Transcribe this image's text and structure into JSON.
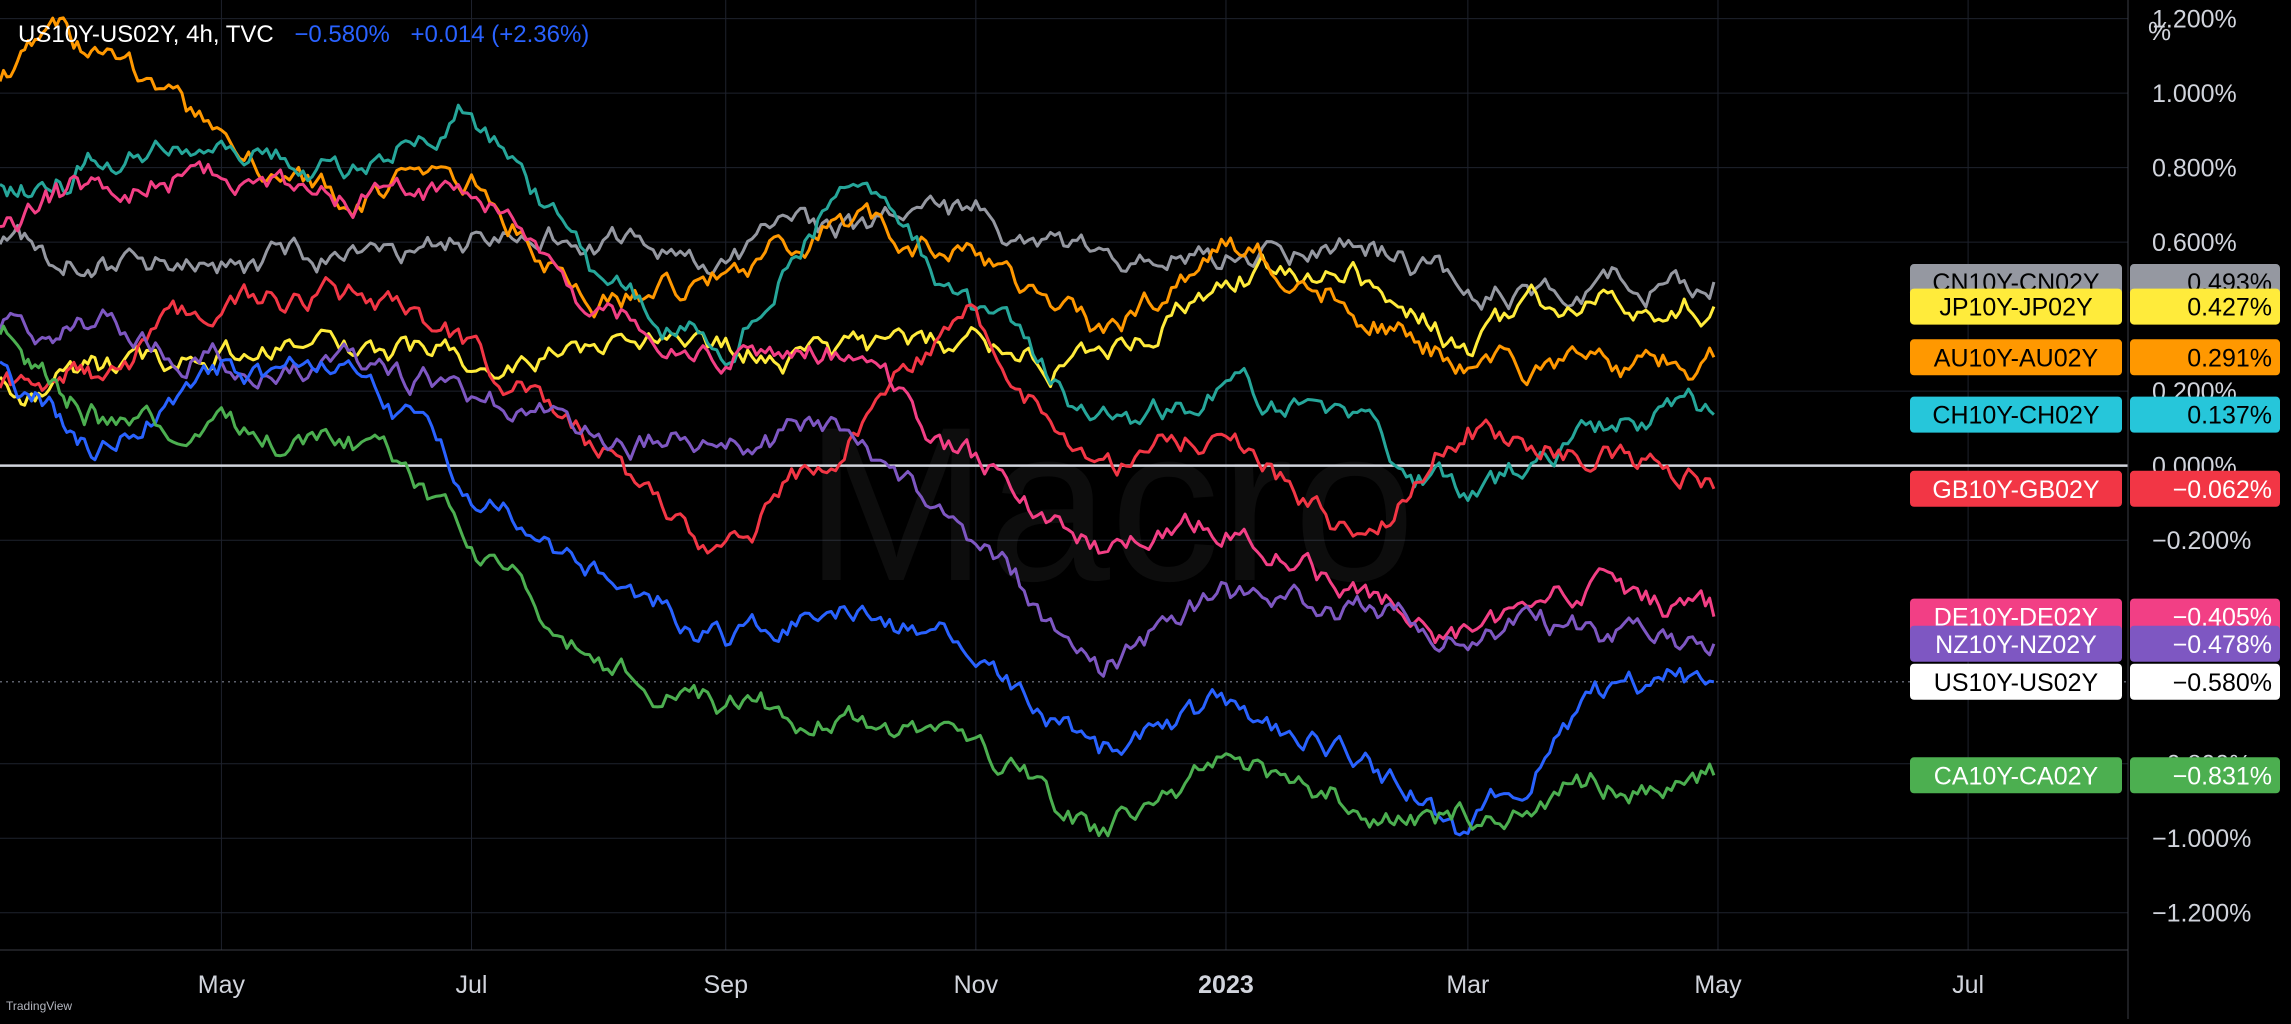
{
  "header": {
    "symbol": "US10Y-US02Y, 4h, TVC",
    "last_value": "−0.580%",
    "change": "+0.014 (+2.36%)",
    "accent_color": "#2962ff"
  },
  "watermark_brand": "Macro",
  "footer_brand": "TradingView",
  "chart_data": {
    "type": "line",
    "yunit": "%",
    "ylim": [
      -1.3,
      1.25
    ],
    "xlim": [
      "2022-03-08",
      "2023-08-09"
    ],
    "grid": true,
    "legend_position": "right",
    "y_ticks": [
      {
        "value": 1.2,
        "label": "1.200%"
      },
      {
        "value": 1.0,
        "label": "1.000%"
      },
      {
        "value": 0.8,
        "label": "0.800%"
      },
      {
        "value": 0.6,
        "label": "0.600%"
      },
      {
        "value": 0.2,
        "label": "0.200%"
      },
      {
        "value": 0.0,
        "label": "0.000%"
      },
      {
        "value": -0.2,
        "label": "−0.200%"
      },
      {
        "value": -0.8,
        "label": "−0.800%"
      },
      {
        "value": -1.0,
        "label": "−1.000%"
      },
      {
        "value": -1.2,
        "label": "−1.200%"
      }
    ],
    "x_ticks": [
      {
        "date": "2022-05-01",
        "label": "May"
      },
      {
        "date": "2022-07-01",
        "label": "Jul"
      },
      {
        "date": "2022-09-01",
        "label": "Sep"
      },
      {
        "date": "2022-11-01",
        "label": "Nov"
      },
      {
        "date": "2023-01-01",
        "label": "2023",
        "bold": true
      },
      {
        "date": "2023-03-01",
        "label": "Mar"
      },
      {
        "date": "2023-05-01",
        "label": "May"
      },
      {
        "date": "2023-07-01",
        "label": "Jul"
      }
    ],
    "zero_line": 0,
    "series": [
      {
        "name": "CN10Y-CN02Y",
        "last_label": "0.493%",
        "last": 0.493,
        "color": "#9598a1",
        "label_text_color": "#000000",
        "x": [
          "2022-03-08",
          "2022-04-01",
          "2022-05-01",
          "2022-06-01",
          "2022-07-01",
          "2022-08-01",
          "2022-09-01",
          "2022-10-01",
          "2022-11-01",
          "2022-12-01",
          "2023-01-01",
          "2023-02-01",
          "2023-03-01",
          "2023-04-01",
          "2023-04-30"
        ],
        "y": [
          0.6,
          0.55,
          0.52,
          0.58,
          0.62,
          0.6,
          0.58,
          0.62,
          0.66,
          0.55,
          0.57,
          0.6,
          0.48,
          0.5,
          0.47
        ]
      },
      {
        "name": "JP10Y-JP02Y",
        "last_label": "0.427%",
        "last": 0.427,
        "color": "#ffeb3b",
        "label_text_color": "#000000",
        "x": [
          "2022-03-08",
          "2022-04-01",
          "2022-05-01",
          "2022-06-01",
          "2022-07-01",
          "2022-08-01",
          "2022-09-01",
          "2022-10-01",
          "2022-11-01",
          "2022-12-01",
          "2023-01-01",
          "2023-02-01",
          "2023-03-01",
          "2023-04-01",
          "2023-04-30"
        ],
        "y": [
          0.22,
          0.26,
          0.28,
          0.3,
          0.29,
          0.3,
          0.3,
          0.29,
          0.31,
          0.26,
          0.52,
          0.54,
          0.3,
          0.5,
          0.43
        ]
      },
      {
        "name": "AU10Y-AU02Y",
        "last_label": "0.291%",
        "last": 0.291,
        "color": "#ff9800",
        "label_text_color": "#000000",
        "x": [
          "2022-03-08",
          "2022-04-01",
          "2022-05-01",
          "2022-06-01",
          "2022-07-01",
          "2022-08-01",
          "2022-09-01",
          "2022-10-01",
          "2022-11-01",
          "2022-12-01",
          "2023-01-01",
          "2023-02-01",
          "2023-03-01",
          "2023-04-01",
          "2023-04-30"
        ],
        "y": [
          1.05,
          1.15,
          0.85,
          0.72,
          0.78,
          0.45,
          0.5,
          0.65,
          0.58,
          0.35,
          0.6,
          0.45,
          0.25,
          0.25,
          0.29
        ]
      },
      {
        "name": "CH10Y-CH02Y",
        "last_label": "0.137%",
        "last": 0.137,
        "color": "#26a69a",
        "label_color": "#26c6da",
        "label_text_color": "#000000",
        "x": [
          "2022-03-08",
          "2022-04-01",
          "2022-05-01",
          "2022-06-01",
          "2022-07-01",
          "2022-08-01",
          "2022-09-01",
          "2022-10-01",
          "2022-11-01",
          "2022-12-01",
          "2023-01-01",
          "2023-02-01",
          "2023-03-01",
          "2023-04-01",
          "2023-04-30"
        ],
        "y": [
          0.75,
          0.8,
          0.88,
          0.8,
          0.98,
          0.5,
          0.3,
          0.8,
          0.4,
          0.1,
          0.2,
          0.1,
          -0.1,
          0.1,
          0.14
        ]
      },
      {
        "name": "GB10Y-GB02Y",
        "last_label": "−0.062%",
        "last": -0.062,
        "color": "#f23645",
        "label_text_color": "#ffffff",
        "x": [
          "2022-03-08",
          "2022-04-01",
          "2022-05-01",
          "2022-06-01",
          "2022-07-01",
          "2022-08-01",
          "2022-09-01",
          "2022-10-01",
          "2022-11-01",
          "2022-12-01",
          "2023-01-01",
          "2023-02-01",
          "2023-03-01",
          "2023-04-01",
          "2023-04-30"
        ],
        "y": [
          0.18,
          0.25,
          0.45,
          0.45,
          0.3,
          0.05,
          -0.25,
          0.1,
          0.4,
          -0.05,
          0.1,
          -0.2,
          0.1,
          0.05,
          -0.06
        ]
      },
      {
        "name": "DE10Y-DE02Y",
        "last_label": "−0.405%",
        "last": -0.405,
        "color": "#f23f85",
        "label_text_color": "#ffffff",
        "x": [
          "2022-03-08",
          "2022-04-01",
          "2022-05-01",
          "2022-06-01",
          "2022-07-01",
          "2022-08-01",
          "2022-09-01",
          "2022-10-01",
          "2022-11-01",
          "2022-12-01",
          "2023-01-01",
          "2023-02-01",
          "2023-03-01",
          "2023-04-01",
          "2023-04-30"
        ],
        "y": [
          0.65,
          0.75,
          0.8,
          0.7,
          0.75,
          0.4,
          0.3,
          0.3,
          0.0,
          -0.2,
          -0.15,
          -0.35,
          -0.45,
          -0.35,
          -0.4
        ]
      },
      {
        "name": "NZ10Y-NZ02Y",
        "last_label": "−0.478%",
        "last": -0.478,
        "color": "#7e57c2",
        "label_text_color": "#ffffff",
        "x": [
          "2022-03-08",
          "2022-04-01",
          "2022-05-01",
          "2022-06-01",
          "2022-07-01",
          "2022-08-01",
          "2022-09-01",
          "2022-10-01",
          "2022-11-01",
          "2022-12-01",
          "2023-01-01",
          "2023-02-01",
          "2023-03-01",
          "2023-04-01",
          "2023-04-30"
        ],
        "y": [
          0.35,
          0.4,
          0.3,
          0.25,
          0.2,
          0.1,
          0.05,
          0.1,
          -0.2,
          -0.55,
          -0.35,
          -0.4,
          -0.4,
          -0.45,
          -0.48
        ]
      },
      {
        "name": "US10Y-US02Y",
        "last_label": "−0.580%",
        "last": -0.58,
        "color": "#2962ff",
        "label_color": "#ffffff",
        "label_text_color": "#000000",
        "x": [
          "2022-03-08",
          "2022-04-01",
          "2022-05-01",
          "2022-06-01",
          "2022-07-01",
          "2022-08-01",
          "2022-09-01",
          "2022-10-01",
          "2022-11-01",
          "2022-12-01",
          "2023-01-01",
          "2023-02-01",
          "2023-03-01",
          "2023-04-01",
          "2023-04-30"
        ],
        "y": [
          0.3,
          0.05,
          0.25,
          0.25,
          -0.05,
          -0.3,
          -0.45,
          -0.4,
          -0.45,
          -0.8,
          -0.65,
          -0.75,
          -1.0,
          -0.6,
          -0.58
        ]
      },
      {
        "name": "CA10Y-CA02Y",
        "last_label": "−0.831%",
        "last": -0.831,
        "color": "#4caf50",
        "label_text_color": "#ffffff",
        "x": [
          "2022-03-08",
          "2022-04-01",
          "2022-05-01",
          "2022-06-01",
          "2022-07-01",
          "2022-08-01",
          "2022-09-01",
          "2022-10-01",
          "2022-11-01",
          "2022-12-01",
          "2023-01-01",
          "2023-02-01",
          "2023-03-01",
          "2023-04-01",
          "2023-04-30"
        ],
        "y": [
          0.35,
          0.15,
          0.1,
          0.05,
          -0.2,
          -0.55,
          -0.65,
          -0.7,
          -0.75,
          -1.0,
          -0.8,
          -0.9,
          -0.95,
          -0.85,
          -0.83
        ]
      }
    ]
  }
}
